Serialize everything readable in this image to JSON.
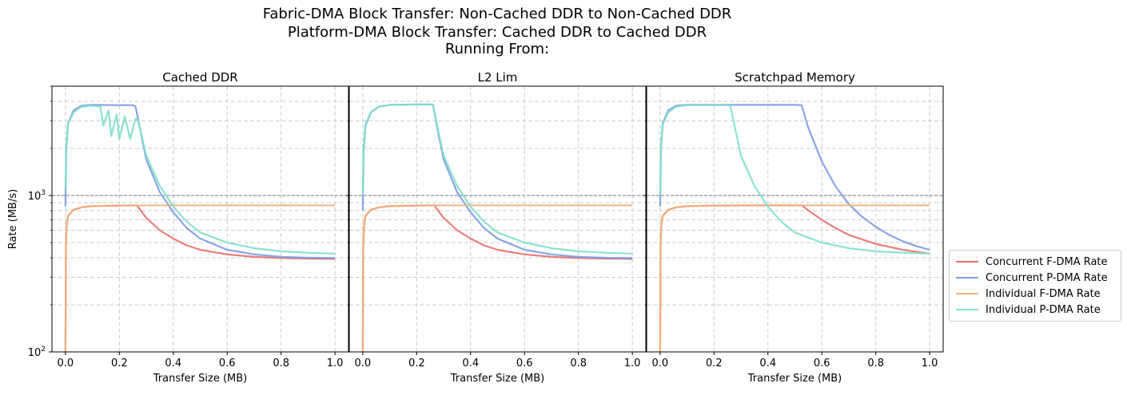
{
  "figure": {
    "title_lines": [
      "Fabric-DMA Block Transfer: Non-Cached DDR to Non-Cached DDR",
      "Platform-DMA Block Transfer: Cached DDR to Cached DDR",
      "Running From:"
    ]
  },
  "legend": {
    "items": [
      {
        "label": "Concurrent F-DMA Rate",
        "color": "#e8706a"
      },
      {
        "label": "Concurrent P-DMA Rate",
        "color": "#7b9be6"
      },
      {
        "label": "Individual F-DMA Rate",
        "color": "#f5b07a"
      },
      {
        "label": "Individual P-DMA Rate",
        "color": "#7fdfcc"
      }
    ]
  },
  "chart_data": {
    "type": "line",
    "yscale": "log",
    "ylim": [
      100,
      5000
    ],
    "xlim": [
      -0.05,
      1.05
    ],
    "grid": true,
    "reference_line_y": 1000,
    "legend_position": "right",
    "ylabel": "Rate (MB/s)",
    "xlabel": "Transfer Size (MB)",
    "x_ticks": [
      "0.0",
      "0.2",
      "0.4",
      "0.6",
      "0.8",
      "1.0"
    ],
    "x_tick_values": [
      0,
      0.2,
      0.4,
      0.6,
      0.8,
      1.0
    ],
    "y_ticks": [
      {
        "base": "10",
        "exp": "2",
        "value": 100
      },
      {
        "base": "10",
        "exp": "3",
        "value": 1000
      }
    ],
    "panels": [
      {
        "title": "Cached DDR",
        "series": [
          {
            "name": "Concurrent F-DMA Rate",
            "color": "#e8706a",
            "points": [
              [
                0,
                100
              ],
              [
                0.002,
                500
              ],
              [
                0.005,
                650
              ],
              [
                0.01,
                740
              ],
              [
                0.03,
                810
              ],
              [
                0.06,
                840
              ],
              [
                0.1,
                855
              ],
              [
                0.2,
                862
              ],
              [
                0.265,
                865
              ],
              [
                0.3,
                720
              ],
              [
                0.35,
                600
              ],
              [
                0.4,
                530
              ],
              [
                0.45,
                480
              ],
              [
                0.5,
                450
              ],
              [
                0.6,
                420
              ],
              [
                0.7,
                405
              ],
              [
                0.8,
                398
              ],
              [
                0.9,
                395
              ],
              [
                1.0,
                393
              ]
            ]
          },
          {
            "name": "Concurrent P-DMA Rate",
            "color": "#7b9be6",
            "points": [
              [
                0,
                850
              ],
              [
                0.003,
                2000
              ],
              [
                0.01,
                2900
              ],
              [
                0.03,
                3500
              ],
              [
                0.06,
                3750
              ],
              [
                0.1,
                3800
              ],
              [
                0.2,
                3780
              ],
              [
                0.25,
                3780
              ],
              [
                0.26,
                3700
              ],
              [
                0.28,
                2500
              ],
              [
                0.3,
                1700
              ],
              [
                0.35,
                1050
              ],
              [
                0.4,
                780
              ],
              [
                0.45,
                620
              ],
              [
                0.5,
                530
              ],
              [
                0.6,
                450
              ],
              [
                0.7,
                420
              ],
              [
                0.8,
                405
              ],
              [
                0.9,
                400
              ],
              [
                1.0,
                398
              ]
            ]
          },
          {
            "name": "Individual F-DMA Rate",
            "color": "#f5b07a",
            "points": [
              [
                0,
                100
              ],
              [
                0.002,
                500
              ],
              [
                0.005,
                650
              ],
              [
                0.01,
                740
              ],
              [
                0.03,
                810
              ],
              [
                0.06,
                840
              ],
              [
                0.1,
                855
              ],
              [
                0.2,
                862
              ],
              [
                0.3,
                865
              ],
              [
                0.5,
                865
              ],
              [
                1.0,
                865
              ]
            ]
          },
          {
            "name": "Individual P-DMA Rate",
            "color": "#7fdfcc",
            "points": [
              [
                0,
                1100
              ],
              [
                0.003,
                2100
              ],
              [
                0.01,
                2900
              ],
              [
                0.03,
                3400
              ],
              [
                0.06,
                3700
              ],
              [
                0.1,
                3750
              ],
              [
                0.13,
                3700
              ],
              [
                0.14,
                2800
              ],
              [
                0.16,
                3500
              ],
              [
                0.17,
                2400
              ],
              [
                0.19,
                3300
              ],
              [
                0.2,
                2300
              ],
              [
                0.22,
                3200
              ],
              [
                0.24,
                2300
              ],
              [
                0.26,
                3100
              ],
              [
                0.27,
                3000
              ],
              [
                0.3,
                1800
              ],
              [
                0.35,
                1150
              ],
              [
                0.4,
                850
              ],
              [
                0.45,
                680
              ],
              [
                0.5,
                580
              ],
              [
                0.6,
                500
              ],
              [
                0.7,
                460
              ],
              [
                0.8,
                440
              ],
              [
                0.9,
                430
              ],
              [
                1.0,
                425
              ]
            ]
          }
        ]
      },
      {
        "title": "L2 Lim",
        "series": [
          {
            "name": "Concurrent F-DMA Rate",
            "color": "#e8706a",
            "points": [
              [
                0,
                100
              ],
              [
                0.002,
                500
              ],
              [
                0.005,
                650
              ],
              [
                0.01,
                740
              ],
              [
                0.03,
                810
              ],
              [
                0.06,
                840
              ],
              [
                0.1,
                855
              ],
              [
                0.2,
                862
              ],
              [
                0.265,
                865
              ],
              [
                0.3,
                720
              ],
              [
                0.35,
                600
              ],
              [
                0.4,
                530
              ],
              [
                0.45,
                480
              ],
              [
                0.5,
                450
              ],
              [
                0.6,
                420
              ],
              [
                0.7,
                405
              ],
              [
                0.8,
                398
              ],
              [
                0.9,
                395
              ],
              [
                1.0,
                393
              ]
            ]
          },
          {
            "name": "Concurrent P-DMA Rate",
            "color": "#7b9be6",
            "points": [
              [
                0,
                800
              ],
              [
                0.003,
                1900
              ],
              [
                0.01,
                2800
              ],
              [
                0.03,
                3400
              ],
              [
                0.06,
                3700
              ],
              [
                0.1,
                3800
              ],
              [
                0.2,
                3820
              ],
              [
                0.26,
                3820
              ],
              [
                0.28,
                2500
              ],
              [
                0.3,
                1700
              ],
              [
                0.35,
                1050
              ],
              [
                0.4,
                780
              ],
              [
                0.45,
                620
              ],
              [
                0.5,
                530
              ],
              [
                0.6,
                450
              ],
              [
                0.7,
                420
              ],
              [
                0.8,
                405
              ],
              [
                0.9,
                400
              ],
              [
                1.0,
                398
              ]
            ]
          },
          {
            "name": "Individual F-DMA Rate",
            "color": "#f5b07a",
            "points": [
              [
                0,
                100
              ],
              [
                0.002,
                500
              ],
              [
                0.005,
                650
              ],
              [
                0.01,
                740
              ],
              [
                0.03,
                810
              ],
              [
                0.06,
                840
              ],
              [
                0.1,
                855
              ],
              [
                0.2,
                862
              ],
              [
                0.3,
                865
              ],
              [
                0.5,
                865
              ],
              [
                1.0,
                865
              ]
            ]
          },
          {
            "name": "Individual P-DMA Rate",
            "color": "#7fdfcc",
            "points": [
              [
                0,
                1000
              ],
              [
                0.003,
                2000
              ],
              [
                0.01,
                2850
              ],
              [
                0.03,
                3400
              ],
              [
                0.06,
                3700
              ],
              [
                0.1,
                3800
              ],
              [
                0.2,
                3820
              ],
              [
                0.26,
                3820
              ],
              [
                0.28,
                2600
              ],
              [
                0.3,
                1800
              ],
              [
                0.35,
                1150
              ],
              [
                0.4,
                850
              ],
              [
                0.45,
                680
              ],
              [
                0.5,
                580
              ],
              [
                0.6,
                500
              ],
              [
                0.7,
                460
              ],
              [
                0.8,
                440
              ],
              [
                0.9,
                430
              ],
              [
                1.0,
                425
              ]
            ]
          }
        ]
      },
      {
        "title": "Scratchpad Memory",
        "series": [
          {
            "name": "Concurrent F-DMA Rate",
            "color": "#e8706a",
            "points": [
              [
                0,
                100
              ],
              [
                0.002,
                500
              ],
              [
                0.005,
                650
              ],
              [
                0.01,
                740
              ],
              [
                0.03,
                810
              ],
              [
                0.06,
                840
              ],
              [
                0.1,
                855
              ],
              [
                0.2,
                862
              ],
              [
                0.4,
                865
              ],
              [
                0.525,
                865
              ],
              [
                0.56,
                780
              ],
              [
                0.6,
                700
              ],
              [
                0.65,
                620
              ],
              [
                0.7,
                560
              ],
              [
                0.8,
                490
              ],
              [
                0.9,
                450
              ],
              [
                1.0,
                425
              ]
            ]
          },
          {
            "name": "Concurrent P-DMA Rate",
            "color": "#7b9be6",
            "points": [
              [
                0,
                850
              ],
              [
                0.003,
                2000
              ],
              [
                0.01,
                2900
              ],
              [
                0.03,
                3500
              ],
              [
                0.06,
                3750
              ],
              [
                0.1,
                3800
              ],
              [
                0.3,
                3800
              ],
              [
                0.5,
                3800
              ],
              [
                0.525,
                3780
              ],
              [
                0.55,
                2700
              ],
              [
                0.6,
                1650
              ],
              [
                0.65,
                1150
              ],
              [
                0.7,
                880
              ],
              [
                0.75,
                730
              ],
              [
                0.8,
                630
              ],
              [
                0.85,
                560
              ],
              [
                0.9,
                510
              ],
              [
                0.95,
                475
              ],
              [
                1.0,
                450
              ]
            ]
          },
          {
            "name": "Individual F-DMA Rate",
            "color": "#f5b07a",
            "points": [
              [
                0,
                100
              ],
              [
                0.002,
                500
              ],
              [
                0.005,
                650
              ],
              [
                0.01,
                740
              ],
              [
                0.03,
                810
              ],
              [
                0.06,
                840
              ],
              [
                0.1,
                855
              ],
              [
                0.2,
                862
              ],
              [
                0.3,
                865
              ],
              [
                0.5,
                865
              ],
              [
                1.0,
                865
              ]
            ]
          },
          {
            "name": "Individual P-DMA Rate",
            "color": "#7fdfcc",
            "points": [
              [
                0,
                1000
              ],
              [
                0.003,
                2000
              ],
              [
                0.01,
                2850
              ],
              [
                0.03,
                3400
              ],
              [
                0.06,
                3700
              ],
              [
                0.1,
                3780
              ],
              [
                0.26,
                3780
              ],
              [
                0.28,
                2600
              ],
              [
                0.3,
                1800
              ],
              [
                0.35,
                1150
              ],
              [
                0.4,
                850
              ],
              [
                0.45,
                680
              ],
              [
                0.5,
                580
              ],
              [
                0.6,
                500
              ],
              [
                0.7,
                460
              ],
              [
                0.8,
                440
              ],
              [
                0.9,
                430
              ],
              [
                1.0,
                425
              ]
            ]
          }
        ]
      }
    ]
  }
}
